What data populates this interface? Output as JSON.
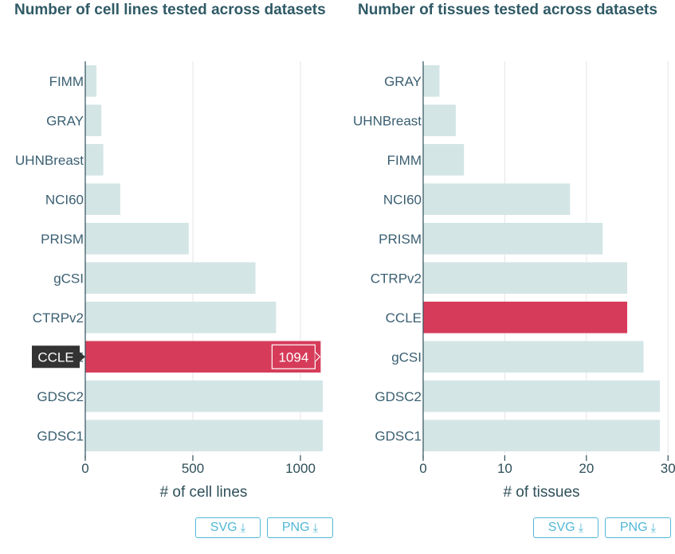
{
  "colors": {
    "bar": "#d4e5e5",
    "highlight": "#d63c5a",
    "grid": "#e6e6e6",
    "axis": "#2f4f5a",
    "text": "#3a5f72",
    "button": "#52b8d6",
    "tooltip_bg": "#333333"
  },
  "chart_data": [
    {
      "type": "bar",
      "orientation": "horizontal",
      "title": "Number of cell lines tested across datasets",
      "xlabel": "# of cell lines",
      "ylabel": "",
      "xlim": [
        0,
        1100
      ],
      "xticks": [
        "0",
        "500",
        "1000"
      ],
      "xtick_values": [
        0,
        500,
        1000
      ],
      "grid": true,
      "categories": [
        "FIMM",
        "GRAY",
        "UHNBreast",
        "NCI60",
        "PRISM",
        "gCSI",
        "CTRPv2",
        "CCLE",
        "GDSC2",
        "GDSC1"
      ],
      "values": [
        52,
        75,
        84,
        163,
        481,
        791,
        887,
        1094,
        1104,
        1104
      ],
      "highlight": "CCLE",
      "hover_label": "CCLE",
      "hover_value": "1094"
    },
    {
      "type": "bar",
      "orientation": "horizontal",
      "title": "Number of tissues tested across datasets",
      "xlabel": "# of tissues",
      "ylabel": "",
      "xlim": [
        0,
        29
      ],
      "xticks": [
        "0",
        "10",
        "20",
        "30"
      ],
      "xtick_values": [
        0,
        10,
        20,
        30
      ],
      "grid": true,
      "categories": [
        "GRAY",
        "UHNBreast",
        "FIMM",
        "NCI60",
        "PRISM",
        "CTRPv2",
        "CCLE",
        "gCSI",
        "GDSC2",
        "GDSC1"
      ],
      "values": [
        2,
        4,
        5,
        18,
        22,
        25,
        25,
        27,
        29,
        29
      ],
      "highlight": "CCLE"
    }
  ],
  "buttons": {
    "left": {
      "svg_label": "SVG",
      "png_label": "PNG"
    },
    "right": {
      "svg_label": "SVG",
      "png_label": "PNG"
    },
    "download_icon": "download-icon"
  }
}
